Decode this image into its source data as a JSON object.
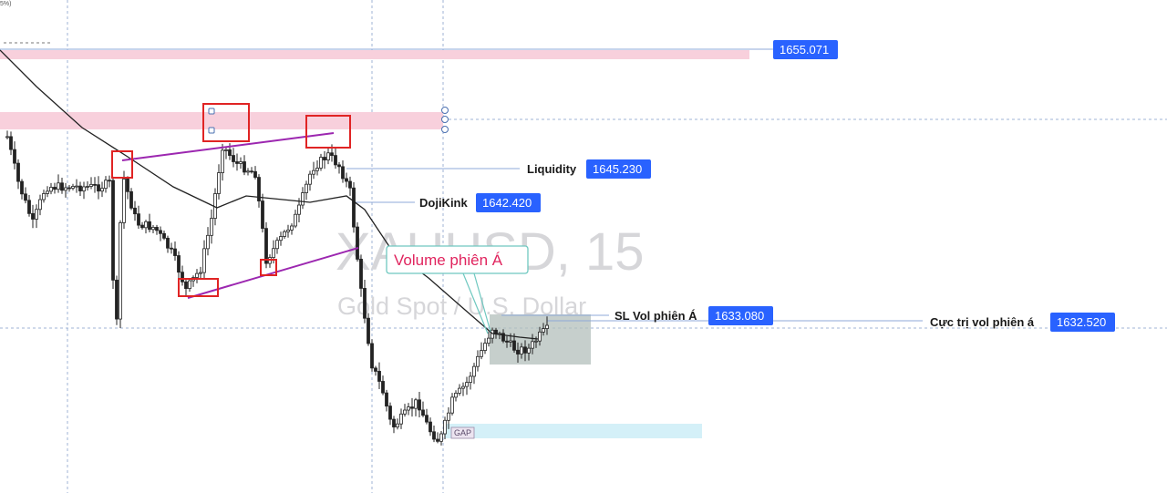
{
  "chart": {
    "corner_text": "5%)",
    "watermark_symbol": "XAUUSD, 15",
    "watermark_description": "Gold Spot / U.S. Dollar",
    "callout": "Volume phiên Á",
    "gap_label": "GAP"
  },
  "levels": [
    {
      "id": "top",
      "label": "",
      "price": "1655.071",
      "value": 1655.071
    },
    {
      "id": "liquidity",
      "label": "Liquidity",
      "price": "1645.230",
      "value": 1645.23
    },
    {
      "id": "dojikink",
      "label": "DojiKink",
      "price": "1642.420",
      "value": 1642.42
    },
    {
      "id": "sl-vol",
      "label": "SL Vol phiên Á",
      "price": "1633.080",
      "value": 1633.08
    },
    {
      "id": "cuc-tri",
      "label": "Cực trị vol phiên á",
      "price": "1632.520",
      "value": 1632.52
    }
  ],
  "colors": {
    "tag_bg": "#2962ff",
    "supply_zone": "#f8d0dc",
    "gap_zone": "#d4f0f8",
    "box_zone": "#b3bfbb",
    "red_box": "#e02424",
    "trendline": "#9c27b0",
    "moving_average": "#222222",
    "candle": "#222222"
  }
}
